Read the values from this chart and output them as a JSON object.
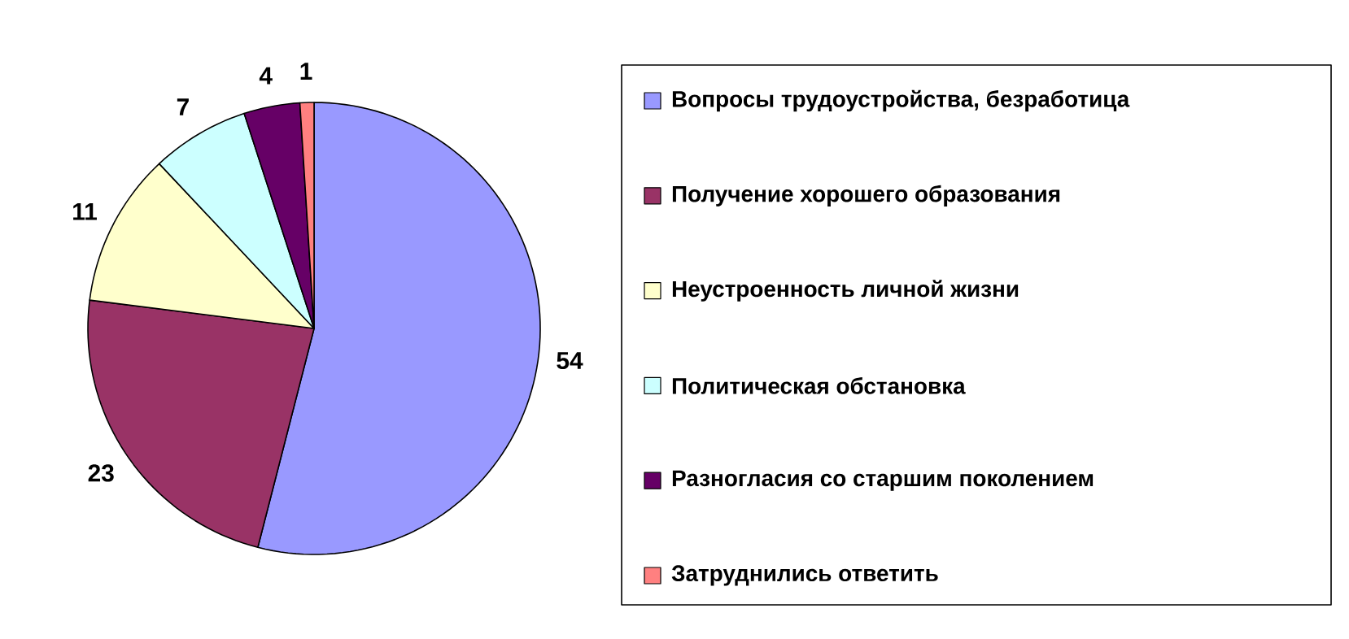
{
  "chart_data": {
    "type": "pie",
    "categories": [
      "Вопросы трудоустройства, безработица",
      "Получение хорошего образования",
      "Неустроенность личной жизни",
      "Политическая обстановка",
      "Разногласия со старшим поколением",
      "Затруднились ответить"
    ],
    "values": [
      54,
      23,
      11,
      7,
      4,
      1
    ],
    "colors": [
      "#9999ff",
      "#993366",
      "#ffffcc",
      "#ccffff",
      "#660066",
      "#ff8080"
    ],
    "data_labels": true,
    "legend": "right"
  }
}
